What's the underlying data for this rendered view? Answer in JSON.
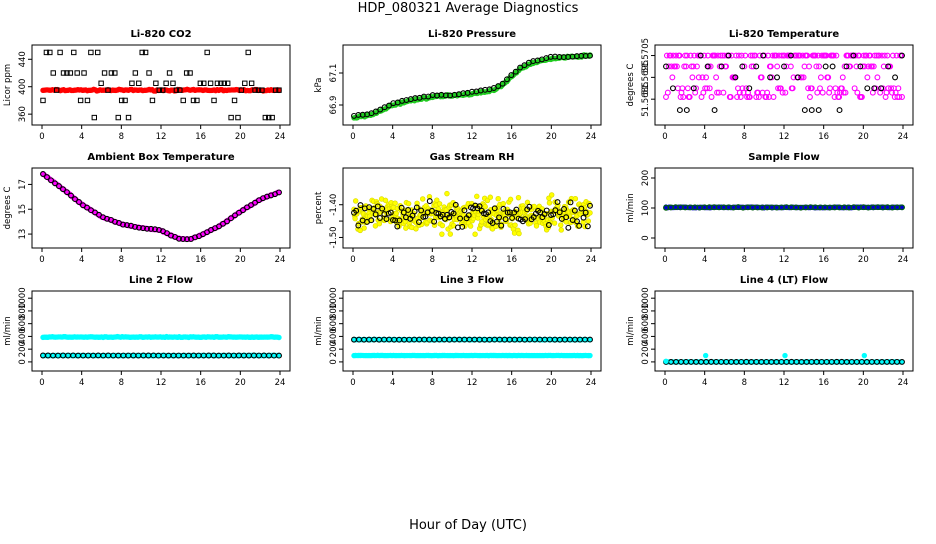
{
  "figure": {
    "title": "HDP_080321  Average Diagnostics",
    "xlabel": "Hour of Day (UTC)"
  },
  "colors": {
    "black": "#000000",
    "red": "#ff0000",
    "green": "#22cc22",
    "magenta": "#ff00ff",
    "yellow": "#ffff00",
    "blue": "#0000cc",
    "cyan": "#00ffff",
    "darkgreen": "#006600"
  },
  "chart_data": [
    {
      "type": "scatter",
      "title": "Li-820 CO2",
      "ylabel": "Licor ppm",
      "xlim": [
        0,
        24
      ],
      "ylim": [
        350,
        455
      ],
      "xticks": [
        0,
        4,
        8,
        12,
        16,
        20,
        24
      ],
      "yticks": [
        360,
        400,
        440
      ],
      "series": [
        {
          "name": "main",
          "color": "red",
          "marker": "filled",
          "generator": "flat",
          "params": {
            "level": 395,
            "noise": 1.5,
            "n": 150
          }
        },
        {
          "name": "scatter",
          "color": "black",
          "marker": "square-open",
          "generator": "discrete",
          "params": {
            "levels": [
              355,
              380,
              395,
              405,
              420,
              450
            ],
            "n": 70
          }
        }
      ]
    },
    {
      "type": "scatter",
      "title": "Li-820 Pressure",
      "ylabel": "kPa",
      "xlim": [
        0,
        24
      ],
      "ylim": [
        66.8,
        67.25
      ],
      "xticks": [
        0,
        4,
        8,
        12,
        16,
        20,
        24
      ],
      "yticks": [
        66.9,
        67.1
      ],
      "series": [
        {
          "name": "main",
          "color": "green",
          "marker": "filled",
          "generator": "curve",
          "params": {
            "points": [
              [
                0,
                66.82
              ],
              [
                2,
                66.84
              ],
              [
                4,
                66.9
              ],
              [
                6,
                66.93
              ],
              [
                8,
                66.95
              ],
              [
                10,
                66.96
              ],
              [
                12,
                66.97
              ],
              [
                14,
                66.99
              ],
              [
                15,
                67.02
              ],
              [
                16,
                67.08
              ],
              [
                17,
                67.13
              ],
              [
                18,
                67.16
              ],
              [
                20,
                67.19
              ],
              [
                22,
                67.2
              ],
              [
                24,
                67.21
              ]
            ],
            "noise": 0.008,
            "n": 200
          }
        },
        {
          "name": "overlay",
          "color": "black",
          "marker": "open",
          "generator": "curve",
          "params": {
            "points": [
              [
                0,
                66.83
              ],
              [
                2,
                66.85
              ],
              [
                4,
                66.91
              ],
              [
                6,
                66.94
              ],
              [
                8,
                66.96
              ],
              [
                10,
                66.96
              ],
              [
                12,
                66.98
              ],
              [
                14,
                67.0
              ],
              [
                15,
                67.03
              ],
              [
                16,
                67.09
              ],
              [
                17,
                67.14
              ],
              [
                18,
                67.17
              ],
              [
                20,
                67.2
              ],
              [
                22,
                67.2
              ],
              [
                24,
                67.21
              ]
            ],
            "noise": 0.006,
            "n": 55
          }
        }
      ]
    },
    {
      "type": "scatter",
      "title": "Li-820 Temperature",
      "ylabel": "degrees C",
      "xlim": [
        0,
        24
      ],
      "ylim": [
        51.5675,
        51.5708
      ],
      "xticks": [
        0,
        4,
        8,
        12,
        16,
        20,
        24
      ],
      "yticks": [
        51.5685,
        51.5695,
        51.5705
      ],
      "ytick_labels": [
        "51.5685",
        "51.5695",
        "51.5705"
      ],
      "series": [
        {
          "name": "main",
          "color": "magenta",
          "marker": "open",
          "generator": "discrete",
          "params": {
            "levels": [
              51.5705,
              51.5705,
              51.5705,
              51.57,
              51.57,
              51.5695,
              51.569,
              51.5688,
              51.5686
            ],
            "n": 260
          }
        },
        {
          "name": "overlay",
          "color": "black",
          "marker": "open",
          "generator": "discrete",
          "params": {
            "levels": [
              51.5705,
              51.57,
              51.5695,
              51.569,
              51.568
            ],
            "n": 35
          }
        }
      ]
    },
    {
      "type": "scatter",
      "title": "Ambient Box Temperature",
      "ylabel": "degrees C",
      "xlim": [
        0,
        24
      ],
      "ylim": [
        12.2,
        18.0
      ],
      "xticks": [
        0,
        4,
        8,
        12,
        16,
        20,
        24
      ],
      "yticks": [
        13,
        15,
        17
      ],
      "series": [
        {
          "name": "main",
          "color": "magenta",
          "marker": "filled",
          "generator": "curve",
          "params": {
            "points": [
              [
                0,
                17.9
              ],
              [
                2,
                16.7
              ],
              [
                4,
                15.4
              ],
              [
                6,
                14.4
              ],
              [
                8,
                13.8
              ],
              [
                10,
                13.5
              ],
              [
                12,
                13.3
              ],
              [
                13,
                12.9
              ],
              [
                14,
                12.6
              ],
              [
                15,
                12.6
              ],
              [
                16,
                12.9
              ],
              [
                18,
                13.7
              ],
              [
                20,
                14.8
              ],
              [
                22,
                15.8
              ],
              [
                24,
                16.4
              ]
            ],
            "noise": 0.05,
            "n": 150
          }
        },
        {
          "name": "overlay",
          "color": "black",
          "marker": "open",
          "generator": "curve",
          "params": {
            "points": [
              [
                0,
                17.9
              ],
              [
                2,
                16.7
              ],
              [
                4,
                15.4
              ],
              [
                6,
                14.4
              ],
              [
                8,
                13.8
              ],
              [
                10,
                13.5
              ],
              [
                12,
                13.3
              ],
              [
                13,
                12.9
              ],
              [
                14,
                12.6
              ],
              [
                15,
                12.6
              ],
              [
                16,
                12.9
              ],
              [
                18,
                13.7
              ],
              [
                20,
                14.8
              ],
              [
                22,
                15.8
              ],
              [
                24,
                16.4
              ]
            ],
            "noise": 0.05,
            "n": 60
          }
        }
      ]
    },
    {
      "type": "scatter",
      "title": "Gas Stream RH",
      "ylabel": "percent",
      "xlim": [
        0,
        24
      ],
      "ylim": [
        -1.52,
        -1.3
      ],
      "xticks": [
        0,
        4,
        8,
        12,
        16,
        20,
        24
      ],
      "yticks": [
        -1.5,
        -1.45,
        -1.4
      ],
      "ytick_labels": [
        "-1.50",
        "",
        "-1.40"
      ],
      "series": [
        {
          "name": "main",
          "color": "yellow",
          "marker": "filled-outline",
          "generator": "noisy",
          "params": {
            "center": -1.43,
            "spread": 0.07,
            "n": 420
          }
        },
        {
          "name": "overlay",
          "color": "black",
          "marker": "open",
          "generator": "noisy",
          "params": {
            "center": -1.43,
            "spread": 0.055,
            "n": 110
          }
        }
      ]
    },
    {
      "type": "scatter",
      "title": "Sample Flow",
      "ylabel": "ml/min",
      "xlim": [
        0,
        24
      ],
      "ylim": [
        -20,
        220
      ],
      "xticks": [
        0,
        4,
        8,
        12,
        16,
        20,
        24
      ],
      "yticks": [
        0,
        100,
        200
      ],
      "series": [
        {
          "name": "main",
          "color": "blue",
          "marker": "filled",
          "generator": "flat",
          "params": {
            "level": 102,
            "noise": 1.5,
            "n": 150
          }
        },
        {
          "name": "overlay",
          "color": "darkgreen",
          "marker": "open",
          "generator": "flat",
          "params": {
            "level": 102,
            "noise": 1.5,
            "n": 50
          }
        }
      ]
    },
    {
      "type": "scatter",
      "title": "Line 2 Flow",
      "ylabel": "ml/min",
      "xlim": [
        0,
        24
      ],
      "ylim": [
        -80,
        1050
      ],
      "xticks": [
        0,
        4,
        8,
        12,
        16,
        20,
        24
      ],
      "yticks": [
        0,
        200,
        400,
        600,
        800,
        1000
      ],
      "series": [
        {
          "name": "upper",
          "color": "cyan",
          "marker": "filled",
          "generator": "flat",
          "params": {
            "level": 390,
            "noise": 8,
            "n": 150
          }
        },
        {
          "name": "lower",
          "color": "cyan",
          "marker": "filled",
          "generator": "flat",
          "params": {
            "level": 100,
            "noise": 3,
            "n": 150
          }
        },
        {
          "name": "overlay",
          "color": "black",
          "marker": "open",
          "generator": "flat",
          "params": {
            "level": 100,
            "noise": 2,
            "n": 48
          }
        }
      ]
    },
    {
      "type": "scatter",
      "title": "Line 3 Flow",
      "ylabel": "ml/min",
      "xlim": [
        0,
        24
      ],
      "ylim": [
        -80,
        1050
      ],
      "xticks": [
        0,
        4,
        8,
        12,
        16,
        20,
        24
      ],
      "yticks": [
        0,
        200,
        400,
        600,
        800,
        1000
      ],
      "series": [
        {
          "name": "upper",
          "color": "cyan",
          "marker": "filled",
          "generator": "flat",
          "params": {
            "level": 350,
            "noise": 4,
            "n": 150
          }
        },
        {
          "name": "lower",
          "color": "cyan",
          "marker": "filled",
          "generator": "flat",
          "params": {
            "level": 100,
            "noise": 3,
            "n": 150
          }
        },
        {
          "name": "overlay",
          "color": "black",
          "marker": "open",
          "generator": "flat",
          "params": {
            "level": 350,
            "noise": 2,
            "n": 48
          }
        }
      ]
    },
    {
      "type": "scatter",
      "title": "Line 4 (LT) Flow",
      "ylabel": "ml/min",
      "xlim": [
        0,
        24
      ],
      "ylim": [
        -80,
        1050
      ],
      "xticks": [
        0,
        4,
        8,
        12,
        16,
        20,
        24
      ],
      "yticks": [
        0,
        200,
        400,
        600,
        800,
        1000
      ],
      "series": [
        {
          "name": "main",
          "color": "cyan",
          "marker": "filled",
          "generator": "flat",
          "params": {
            "level": 0,
            "noise": 1,
            "n": 150
          }
        },
        {
          "name": "overlay",
          "color": "black",
          "marker": "open",
          "generator": "flat",
          "params": {
            "level": 0,
            "noise": 1,
            "n": 48
          }
        },
        {
          "name": "spikes",
          "color": "cyan",
          "marker": "filled",
          "generator": "points",
          "params": {
            "points": [
              [
                0.1,
                10
              ],
              [
                4.1,
                100
              ],
              [
                12.1,
                100
              ],
              [
                20.1,
                100
              ]
            ]
          }
        }
      ]
    }
  ]
}
